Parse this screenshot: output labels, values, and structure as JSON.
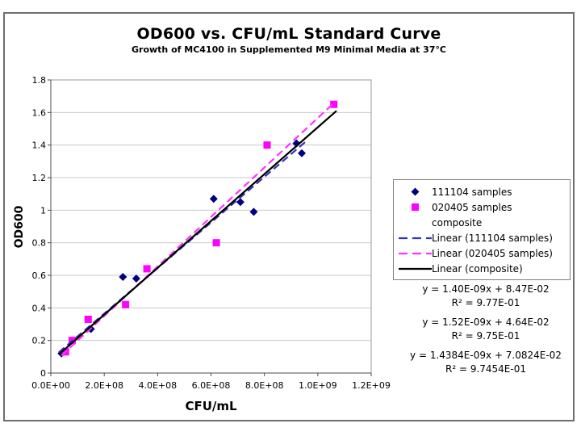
{
  "window": {
    "background": "#ffffff",
    "frame_border_color": "#6e6e6e"
  },
  "chart_data": {
    "type": "scatter",
    "title": "OD600 vs. CFU/mL Standard Curve",
    "subtitle": "Growth of MC4100 in Supplemented M9 Minimal Media at 37°C",
    "xlabel": "CFU/mL",
    "ylabel": "OD600",
    "xlim": [
      0,
      1200000000
    ],
    "ylim": [
      0,
      1.8
    ],
    "grid": "horizontal-only",
    "legend_position": "right",
    "x_ticks": {
      "values": [
        0,
        200000000,
        400000000,
        600000000,
        800000000,
        1000000000,
        1200000000
      ],
      "labels": [
        "0.0E+00",
        "2.0E+08",
        "4.0E+08",
        "6.0E+08",
        "8.0E+08",
        "1.0E+09",
        "1.2E+09"
      ]
    },
    "y_ticks": {
      "values": [
        0,
        0.2,
        0.4,
        0.6,
        0.8,
        1.0,
        1.2,
        1.4,
        1.6,
        1.8
      ],
      "labels": [
        "0",
        "0.2",
        "0.4",
        "0.6",
        "0.8",
        "1",
        "1.2",
        "1.4",
        "1.6",
        "1.8"
      ]
    },
    "series": [
      {
        "name": "111104 samples",
        "marker": "diamond",
        "color": "#000080",
        "points": [
          [
            40000000,
            0.12
          ],
          [
            150000000,
            0.27
          ],
          [
            270000000,
            0.59
          ],
          [
            320000000,
            0.58
          ],
          [
            610000000,
            1.07
          ],
          [
            710000000,
            1.05
          ],
          [
            760000000,
            0.99
          ],
          [
            920000000,
            1.41
          ],
          [
            940000000,
            1.35
          ]
        ]
      },
      {
        "name": "020405 samples",
        "marker": "square",
        "color": "#ff00ff",
        "points": [
          [
            55000000,
            0.13
          ],
          [
            80000000,
            0.2
          ],
          [
            140000000,
            0.33
          ],
          [
            280000000,
            0.42
          ],
          [
            360000000,
            0.64
          ],
          [
            620000000,
            0.8
          ],
          [
            810000000,
            1.4
          ],
          [
            1060000000,
            1.65
          ]
        ]
      },
      {
        "name": "composite",
        "marker": "none",
        "color": "",
        "points": []
      }
    ],
    "trendlines": [
      {
        "label": "Linear (111104 samples)",
        "slope": 1.4e-09,
        "intercept": 0.0847,
        "x_start": 30000000,
        "x_end": 960000000,
        "color": "#3333b4",
        "dashed": true
      },
      {
        "label": "Linear (020405 samples)",
        "slope": 1.52e-09,
        "intercept": 0.0464,
        "x_start": 40000000,
        "x_end": 1065000000,
        "color": "#ff33ff",
        "dashed": true
      },
      {
        "label": "Linear (composite)",
        "slope": 1.4384e-09,
        "intercept": 0.070824,
        "x_start": 30000000,
        "x_end": 1070000000,
        "color": "#000000",
        "dashed": false
      }
    ]
  },
  "legend": {
    "items": [
      {
        "label": "111104 samples",
        "swatch": "diamond",
        "color": "#000080"
      },
      {
        "label": "020405 samples",
        "swatch": "square",
        "color": "#ff00ff"
      },
      {
        "label": "composite",
        "swatch": "none",
        "color": ""
      },
      {
        "label": "Linear (111104 samples)",
        "swatch": "dashed-line",
        "color": "#3333b4"
      },
      {
        "label": "Linear (020405 samples)",
        "swatch": "dashed-line",
        "color": "#ff33ff"
      },
      {
        "label": "Linear (composite)",
        "swatch": "solid-line",
        "color": "#000000"
      }
    ]
  },
  "equations": {
    "groups": [
      {
        "formula": "y = 1.40E-09x + 8.47E-02",
        "r_squared": "R² = 9.77E-01"
      },
      {
        "formula": "y = 1.52E-09x + 4.64E-02",
        "r_squared": "R² = 9.75E-01"
      },
      {
        "formula": "y = 1.4384E-09x + 7.0824E-02",
        "r_squared": "R² = 9.7454E-01"
      }
    ]
  }
}
